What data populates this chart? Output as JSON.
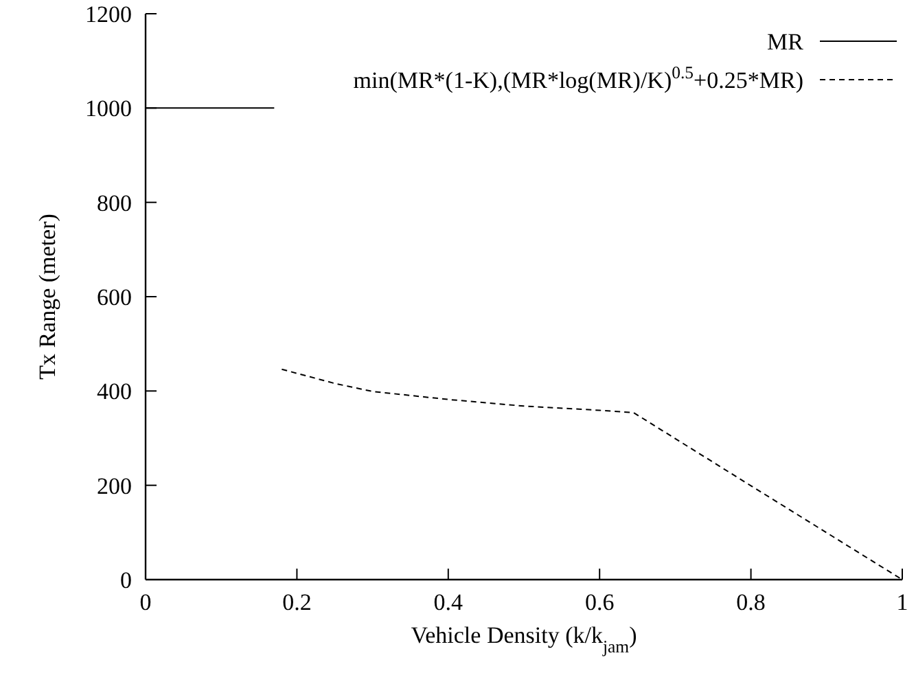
{
  "chart_data": {
    "type": "line",
    "xlabel": "Vehicle Density (k/k$_{jam}$)",
    "ylabel": "Tx Range (meter)",
    "xlim": [
      0,
      1
    ],
    "ylim": [
      0,
      1200
    ],
    "xticks": [
      0,
      0.2,
      0.4,
      0.6,
      0.8,
      1
    ],
    "yticks": [
      0,
      200,
      400,
      600,
      800,
      1000,
      1200
    ],
    "legend": "top right",
    "grid": false,
    "series": [
      {
        "name": "MR",
        "color": "#000000",
        "line_style": "solid",
        "x": [
          0,
          0.17
        ],
        "values": [
          1000,
          1000
        ]
      },
      {
        "name": "min(MR*(1-K),(MR*log(MR)/K)$^{0.5}$+0.25*MR)",
        "color": "#000000",
        "line_style": "dashed",
        "x": [
          0.18,
          0.25,
          0.3,
          0.4,
          0.5,
          0.6,
          0.645,
          0.8,
          1
        ],
        "values": [
          446,
          416,
          399,
          382,
          368,
          359,
          354,
          199,
          0
        ]
      }
    ]
  }
}
